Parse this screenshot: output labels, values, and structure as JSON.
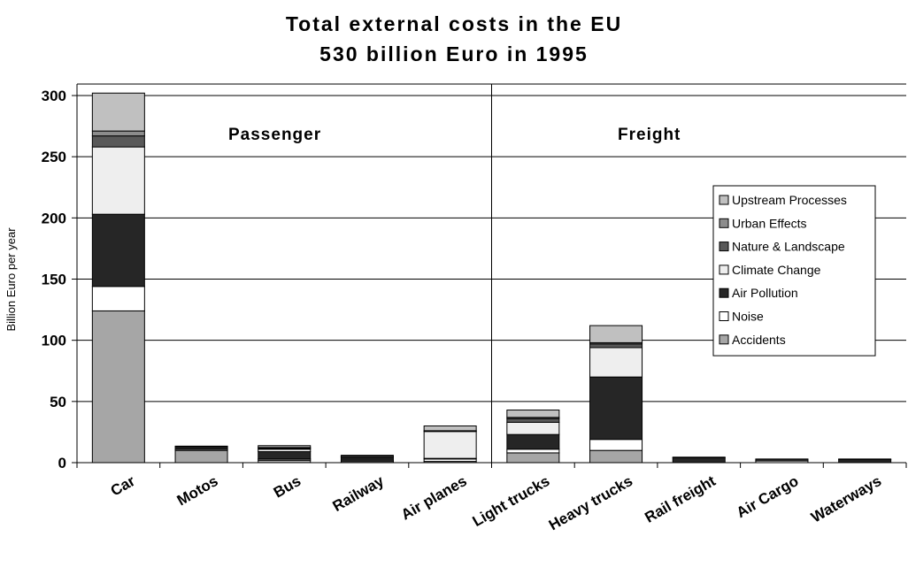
{
  "chart_data": {
    "type": "bar",
    "stacked": true,
    "title": "Total external costs in the EU",
    "subtitle": "530 billion Euro in 1995",
    "xlabel": "",
    "ylabel": "Billion Euro per year",
    "ylim": [
      0,
      300
    ],
    "yticks": [
      "0",
      "50",
      "100",
      "150",
      "200",
      "250",
      "300"
    ],
    "grid": true,
    "legend_position": "right",
    "categories": [
      "Car",
      "Motos",
      "Bus",
      "Railway",
      "Air planes",
      "Light trucks",
      "Heavy trucks",
      "Rail freight",
      "Air Cargo",
      "Waterways"
    ],
    "annotations": [
      "Passenger",
      "Freight"
    ],
    "series": [
      {
        "name": "Accidents",
        "color": "#a6a6a6",
        "values": [
          124,
          10,
          2,
          1,
          1,
          8,
          10,
          0,
          0,
          0
        ]
      },
      {
        "name": "Noise",
        "color": "#ffffff",
        "values": [
          20,
          1,
          1,
          1,
          2,
          3,
          9,
          0,
          1.5,
          0
        ]
      },
      {
        "name": "Air Pollution",
        "color": "#262626",
        "values": [
          59,
          2,
          6,
          2,
          0.5,
          12,
          51,
          4,
          0.2,
          2.5
        ]
      },
      {
        "name": "Climate Change",
        "color": "#eeeeee",
        "values": [
          55,
          0.5,
          2,
          1,
          22,
          10,
          24,
          0.5,
          1,
          0.5
        ]
      },
      {
        "name": "Nature & Landscape",
        "color": "#595959",
        "values": [
          9,
          0,
          0.7,
          0.3,
          0.3,
          3,
          3,
          0,
          0,
          0
        ]
      },
      {
        "name": "Urban Effects",
        "color": "#8c8c8c",
        "values": [
          4,
          0,
          0.7,
          0.3,
          0.3,
          1,
          1,
          0,
          0,
          0
        ]
      },
      {
        "name": "Upstream Processes",
        "color": "#c0c0c0",
        "values": [
          31,
          0,
          1.5,
          0.4,
          3.9,
          6,
          14,
          0,
          0.3,
          0
        ]
      }
    ],
    "legend_order": [
      "Upstream Processes",
      "Urban Effects",
      "Nature & Landscape",
      "Climate Change",
      "Air Pollution",
      "Noise",
      "Accidents"
    ]
  }
}
